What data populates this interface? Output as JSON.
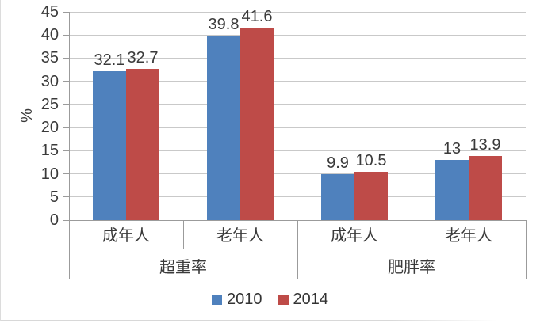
{
  "chart_data": {
    "type": "bar",
    "title": "",
    "ylabel": "%",
    "ylim": [
      0,
      45
    ],
    "yticks": [
      0,
      5,
      10,
      15,
      20,
      25,
      30,
      35,
      40,
      45
    ],
    "grid": true,
    "legend_position": "bottom-center",
    "groups": [
      {
        "label": "超重率",
        "categories": [
          "成年人",
          "老年人"
        ]
      },
      {
        "label": "肥胖率",
        "categories": [
          "成年人",
          "老年人"
        ]
      }
    ],
    "series": [
      {
        "name": "2010",
        "color": "#4F81BD",
        "values": [
          32.1,
          39.8,
          9.9,
          13
        ]
      },
      {
        "name": "2014",
        "color": "#BE4B48",
        "values": [
          32.7,
          41.6,
          10.5,
          13.9
        ]
      }
    ],
    "colors": {
      "grid": "#c9c9c9",
      "axis": "#9b9b9b",
      "text": "#3a3a3a"
    }
  }
}
